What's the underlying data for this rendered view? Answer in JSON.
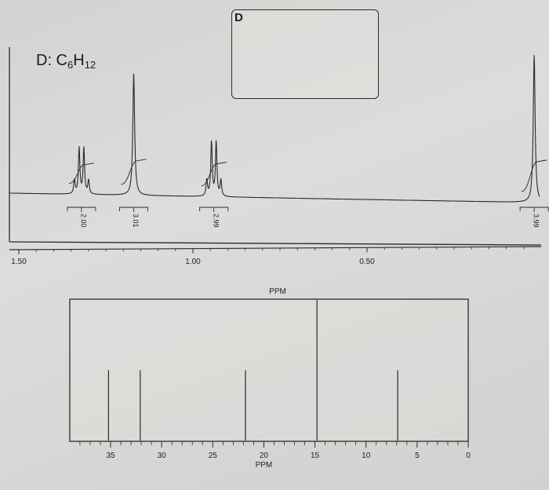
{
  "labels": {
    "compound_prefix": "D: C",
    "subscript_1": "6",
    "middle": "H",
    "subscript_2": "12",
    "answer_letter": "D"
  },
  "chart_data": [
    {
      "type": "line",
      "subtype": "1H NMR spectrum",
      "xlabel": "PPM",
      "x_reversed": true,
      "xlim": [
        1.5,
        0.0
      ],
      "tick_labels": [
        "1.50",
        "1.00",
        "0.50"
      ],
      "tick_values": [
        1.5,
        1.0,
        0.5
      ],
      "peaks": [
        {
          "shift": 1.32,
          "multiplicity": "quartet",
          "relative_height": 0.38,
          "integration": "2.00"
        },
        {
          "shift": 1.17,
          "multiplicity": "singlet",
          "relative_height": 1.0,
          "integration": "3.01"
        },
        {
          "shift": 0.94,
          "multiplicity": "quartet",
          "relative_height": 0.45,
          "integration": "2.99"
        },
        {
          "shift": 0.02,
          "multiplicity": "singlet",
          "relative_height": 1.22,
          "integration": "3.99"
        }
      ]
    },
    {
      "type": "bar",
      "subtype": "13C NMR stick spectrum",
      "xlabel": "PPM",
      "x_reversed": true,
      "xlim": [
        38,
        0
      ],
      "tick_labels": [
        "35",
        "30",
        "25",
        "20",
        "15",
        "10",
        "5",
        "0"
      ],
      "tick_values": [
        35,
        30,
        25,
        20,
        15,
        10,
        5,
        0
      ],
      "peaks": [
        {
          "shift": 35.2,
          "relative_height": 0.5
        },
        {
          "shift": 32.1,
          "relative_height": 0.5
        },
        {
          "shift": 21.8,
          "relative_height": 0.5
        },
        {
          "shift": 14.8,
          "relative_height": 1.0
        },
        {
          "shift": 6.9,
          "relative_height": 0.5
        }
      ]
    }
  ]
}
